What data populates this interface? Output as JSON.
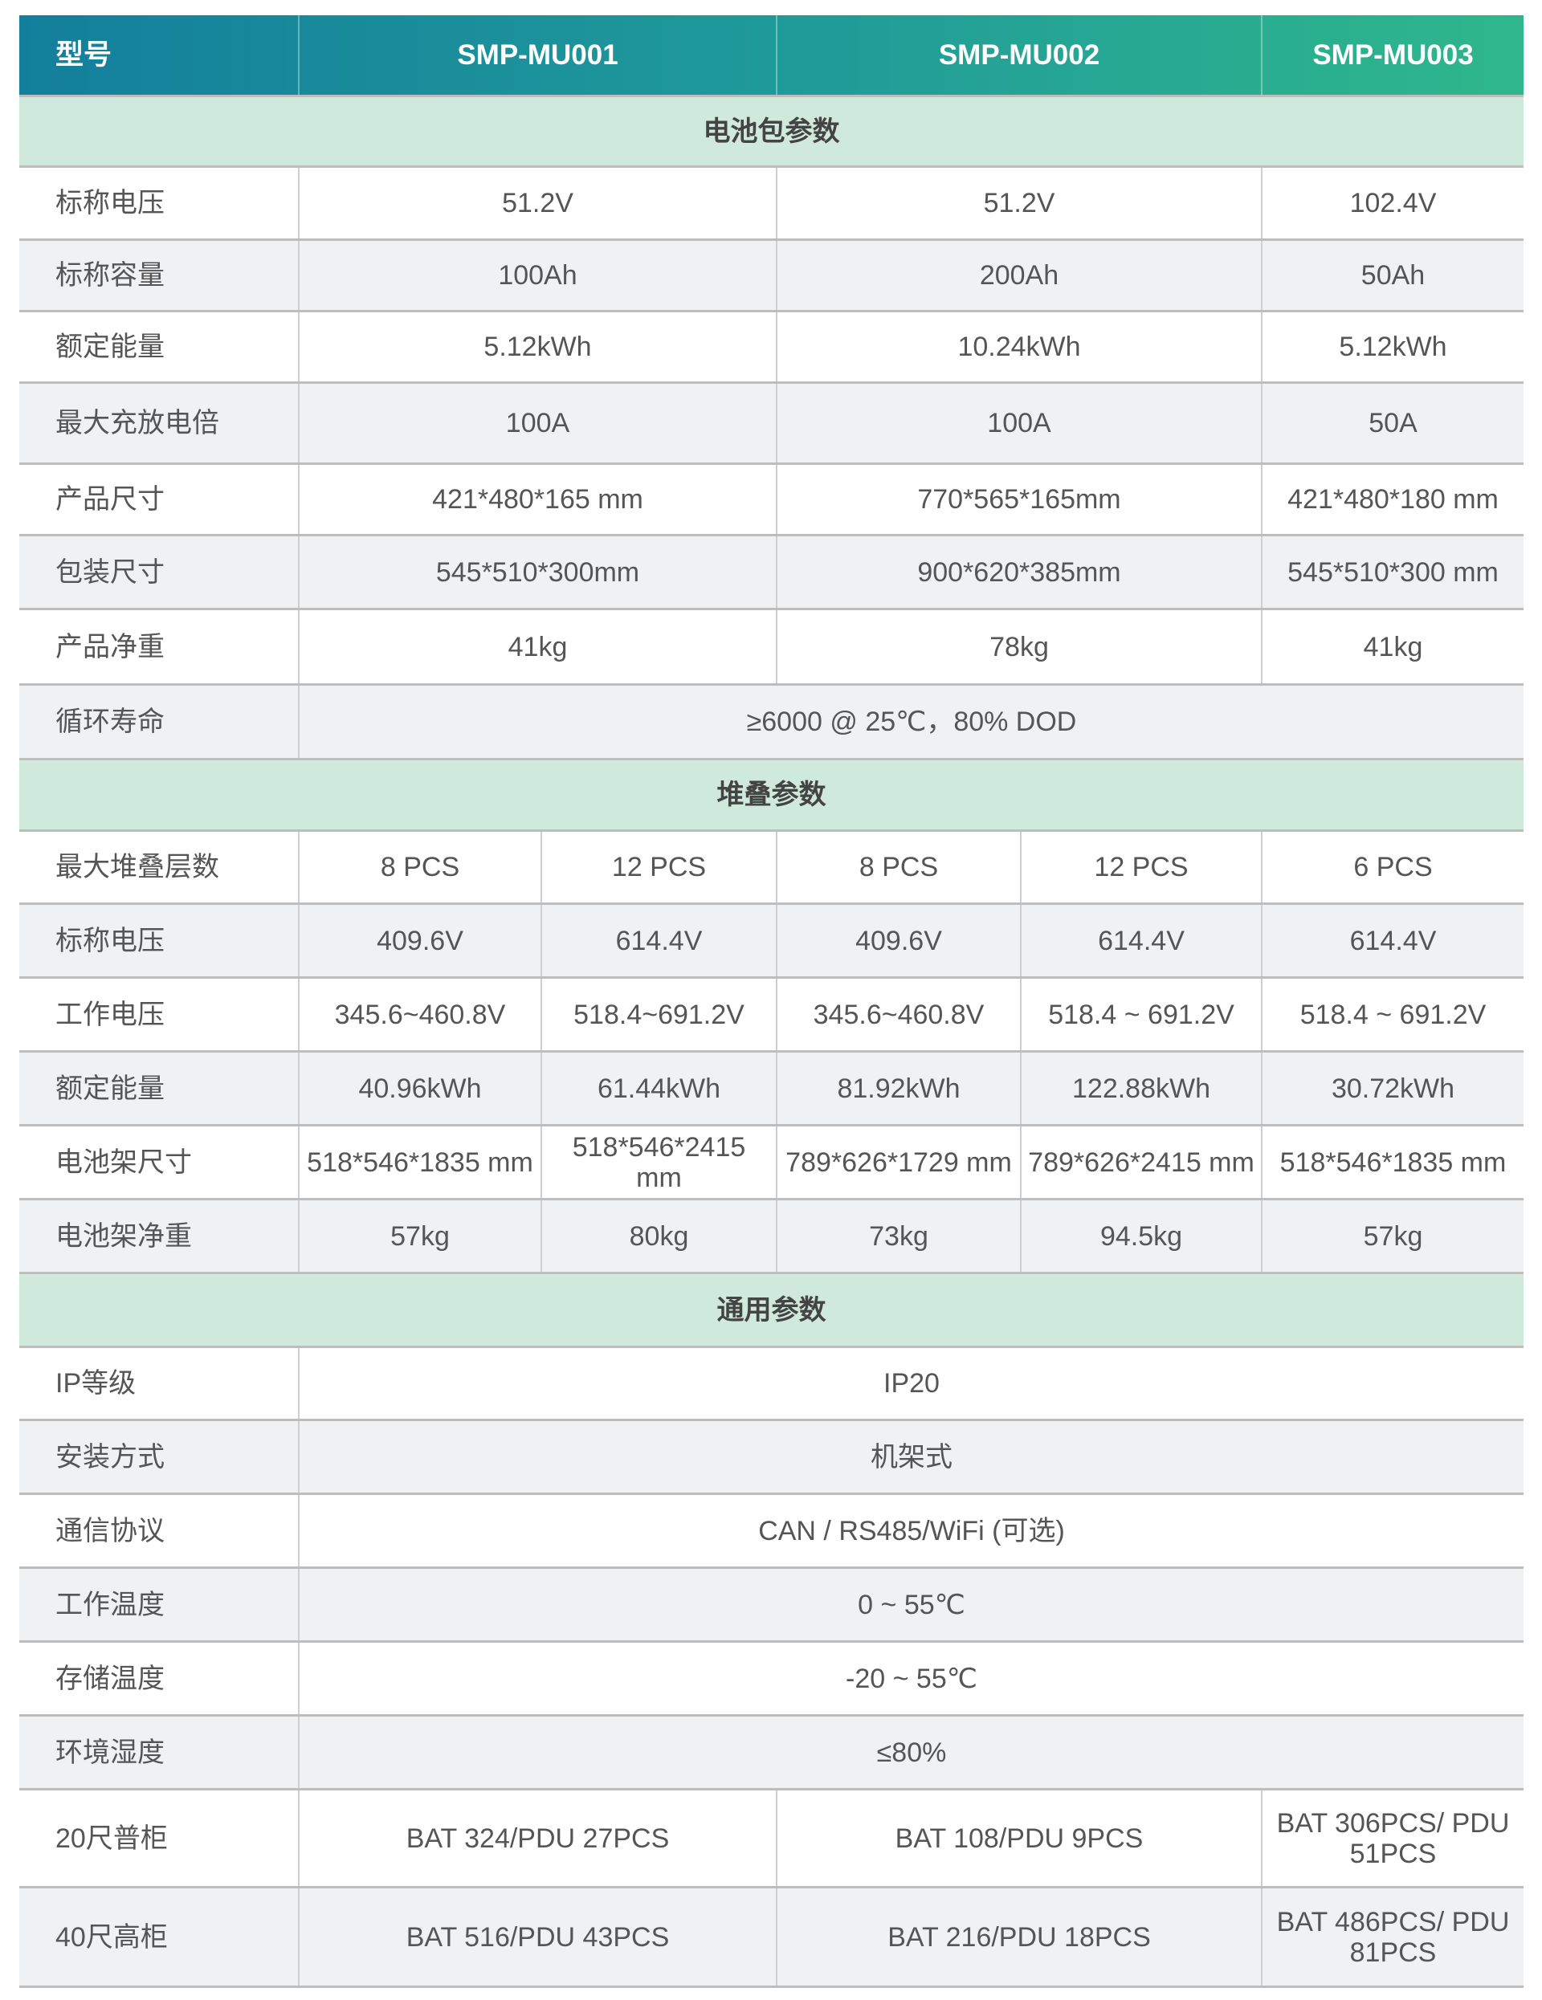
{
  "colors": {
    "header_start": "#137f9c",
    "header_end": "#2fb78b",
    "section_bg": "#cfe9dc",
    "row_alt": "#f0f1f3"
  },
  "header": {
    "label": "型号",
    "models": [
      "SMP-MU001",
      "SMP-MU002",
      "SMP-MU003"
    ]
  },
  "sections": [
    {
      "title": "电池包参数",
      "layout": "models",
      "rows": [
        {
          "label": "标称电压",
          "values": [
            "51.2V",
            "51.2V",
            "102.4V"
          ]
        },
        {
          "label": "标称容量",
          "values": [
            "100Ah",
            "200Ah",
            "50Ah"
          ]
        },
        {
          "label": "额定能量",
          "values": [
            "5.12kWh",
            "10.24kWh",
            "5.12kWh"
          ]
        },
        {
          "label": "最大充放电倍",
          "values": [
            "100A",
            "100A",
            "50A"
          ]
        },
        {
          "label": "产品尺寸",
          "values": [
            "421*480*165 mm",
            "770*565*165mm",
            "421*480*180 mm"
          ]
        },
        {
          "label": "包装尺寸",
          "values": [
            "545*510*300mm",
            "900*620*385mm",
            "545*510*300 mm"
          ]
        },
        {
          "label": "产品净重",
          "values": [
            "41kg",
            "78kg",
            "41kg"
          ]
        },
        {
          "label": "循环寿命",
          "values": [
            "≥6000 @ 25℃，80% DOD"
          ]
        }
      ]
    },
    {
      "title": "堆叠参数",
      "layout": "stack",
      "rows": [
        {
          "label": "最大堆叠层数",
          "values": [
            "8 PCS",
            "12 PCS",
            "8 PCS",
            "12 PCS",
            "6 PCS"
          ]
        },
        {
          "label": "标称电压",
          "values": [
            "409.6V",
            "614.4V",
            "409.6V",
            "614.4V",
            "614.4V"
          ]
        },
        {
          "label": "工作电压",
          "values": [
            "345.6~460.8V",
            "518.4~691.2V",
            "345.6~460.8V",
            "518.4 ~ 691.2V",
            "518.4 ~ 691.2V"
          ]
        },
        {
          "label": "额定能量",
          "values": [
            "40.96kWh",
            "61.44kWh",
            "81.92kWh",
            "122.88kWh",
            "30.72kWh"
          ]
        },
        {
          "label": "电池架尺寸",
          "values": [
            "518*546*1835 mm",
            "518*546*2415 mm",
            "789*626*1729 mm",
            "789*626*2415 mm",
            "518*546*1835 mm"
          ]
        },
        {
          "label": "电池架净重",
          "values": [
            "57kg",
            "80kg",
            "73kg",
            "94.5kg",
            "57kg"
          ]
        }
      ]
    },
    {
      "title": "通用参数",
      "layout": "general",
      "rows": [
        {
          "label": "IP等级",
          "values": [
            "IP20"
          ]
        },
        {
          "label": "安装方式",
          "values": [
            "机架式"
          ]
        },
        {
          "label": "通信协议",
          "values": [
            "CAN / RS485/WiFi (可选)"
          ]
        },
        {
          "label": "工作温度",
          "values": [
            "0 ~ 55℃"
          ]
        },
        {
          "label": "存储温度",
          "values": [
            "-20 ~ 55℃"
          ]
        },
        {
          "label": "环境湿度",
          "values": [
            "≤80%"
          ]
        },
        {
          "label": "20尺普柜",
          "values": [
            "BAT 324/PDU 27PCS",
            "BAT 108/PDU 9PCS",
            "BAT 306PCS/ PDU 51PCS"
          ]
        },
        {
          "label": "40尺高柜",
          "values": [
            "BAT 516/PDU 43PCS",
            "BAT 216/PDU 18PCS",
            "BAT 486PCS/ PDU 81PCS"
          ]
        }
      ]
    }
  ]
}
